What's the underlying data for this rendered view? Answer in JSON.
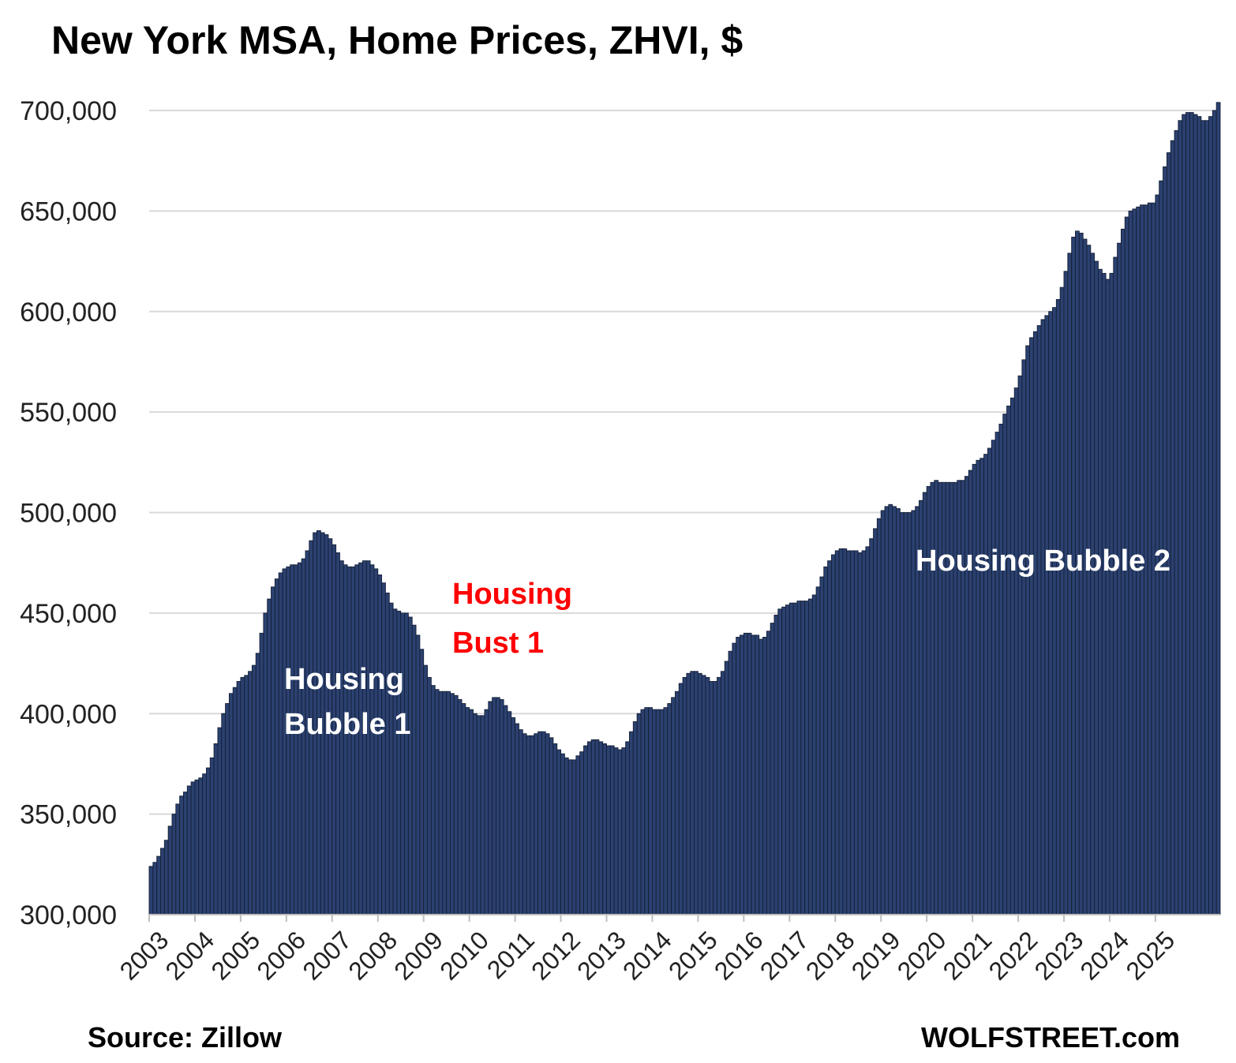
{
  "chart_data": {
    "type": "bar",
    "title": "New York MSA, Home Prices, ZHVI, $",
    "xlabel": "",
    "ylabel": "",
    "ylim": [
      300000,
      700000
    ],
    "yticks": [
      300000,
      350000,
      400000,
      450000,
      500000,
      550000,
      600000,
      650000,
      700000
    ],
    "ytick_labels": [
      "300,000",
      "350,000",
      "400,000",
      "450,000",
      "500,000",
      "550,000",
      "600,000",
      "650,000",
      "700,000"
    ],
    "x_tick_labels": [
      "2003",
      "2004",
      "2005",
      "2006",
      "2007",
      "2008",
      "2009",
      "2010",
      "2011",
      "2012",
      "2013",
      "2014",
      "2015",
      "2016",
      "2017",
      "2018",
      "2019",
      "2020",
      "2021",
      "2022",
      "2023",
      "2024",
      "2025"
    ],
    "grid": true,
    "legend": "none",
    "bar_color": "#2b4170",
    "series": [
      {
        "x_start": "2003-01",
        "frequency": "monthly",
        "values": [
          324000,
          326000,
          329000,
          333000,
          337000,
          344000,
          350000,
          355000,
          359000,
          361000,
          364000,
          366000,
          367000,
          368000,
          370000,
          373000,
          378000,
          385000,
          393000,
          400000,
          405000,
          410000,
          413000,
          416000,
          418000,
          419000,
          421000,
          424000,
          430000,
          440000,
          450000,
          457000,
          463000,
          467000,
          470000,
          472000,
          473000,
          474000,
          474000,
          475000,
          477000,
          481000,
          486000,
          490000,
          491000,
          490000,
          489000,
          487000,
          484000,
          480000,
          476000,
          474000,
          473000,
          473000,
          474000,
          475000,
          476000,
          476000,
          474000,
          472000,
          469000,
          465000,
          460000,
          455000,
          452000,
          451000,
          450000,
          450000,
          448000,
          444000,
          439000,
          432000,
          424000,
          418000,
          414000,
          412000,
          411000,
          411000,
          411000,
          410000,
          409000,
          407000,
          405000,
          403000,
          402000,
          400000,
          399000,
          399000,
          402000,
          406000,
          408000,
          408000,
          407000,
          404000,
          401000,
          398000,
          395000,
          392000,
          390000,
          389000,
          389000,
          390000,
          391000,
          391000,
          390000,
          388000,
          385000,
          382000,
          380000,
          378000,
          377000,
          377000,
          379000,
          381000,
          384000,
          386000,
          387000,
          387000,
          386000,
          385000,
          384000,
          384000,
          383000,
          382000,
          383000,
          386000,
          391000,
          396000,
          400000,
          402000,
          403000,
          403000,
          402000,
          402000,
          402000,
          403000,
          405000,
          408000,
          411000,
          415000,
          418000,
          420000,
          421000,
          421000,
          420000,
          419000,
          418000,
          416000,
          416000,
          418000,
          421000,
          426000,
          431000,
          435000,
          438000,
          439000,
          440000,
          440000,
          439000,
          439000,
          437000,
          438000,
          441000,
          445000,
          449000,
          452000,
          453000,
          454000,
          455000,
          455000,
          456000,
          456000,
          456000,
          457000,
          459000,
          463000,
          468000,
          473000,
          476000,
          479000,
          481000,
          482000,
          482000,
          481000,
          481000,
          481000,
          480000,
          481000,
          483000,
          487000,
          492000,
          497000,
          501000,
          503000,
          504000,
          503000,
          502000,
          500000,
          500000,
          500000,
          501000,
          503000,
          506000,
          510000,
          513000,
          515000,
          516000,
          515000,
          515000,
          515000,
          515000,
          515000,
          516000,
          516000,
          518000,
          521000,
          524000,
          526000,
          527000,
          529000,
          532000,
          536000,
          540000,
          544000,
          549000,
          553000,
          557000,
          562000,
          568000,
          576000,
          583000,
          587000,
          590000,
          593000,
          596000,
          598000,
          600000,
          602000,
          606000,
          612000,
          620000,
          629000,
          637000,
          640000,
          639000,
          636000,
          633000,
          629000,
          625000,
          621000,
          619000,
          616000,
          619000,
          627000,
          634000,
          641000,
          647000,
          650000,
          651000,
          652000,
          653000,
          653000,
          654000,
          654000,
          658000,
          665000,
          672000,
          679000,
          685000,
          690000,
          695000,
          698000,
          699000,
          699000,
          698000,
          697000,
          695000,
          695000,
          697000,
          700000,
          704000
        ]
      }
    ],
    "annotations": [
      {
        "text_lines": [
          "Housing",
          "Bubble 1"
        ],
        "color": "#ffffff"
      },
      {
        "text_lines": [
          "Housing",
          "Bust 1"
        ],
        "color": "#ff0000"
      },
      {
        "text_lines": [
          "Housing Bubble 2"
        ],
        "color": "#ffffff"
      }
    ]
  },
  "footer": {
    "source": "Source: Zillow",
    "brand": "WOLFSTREET.com"
  }
}
